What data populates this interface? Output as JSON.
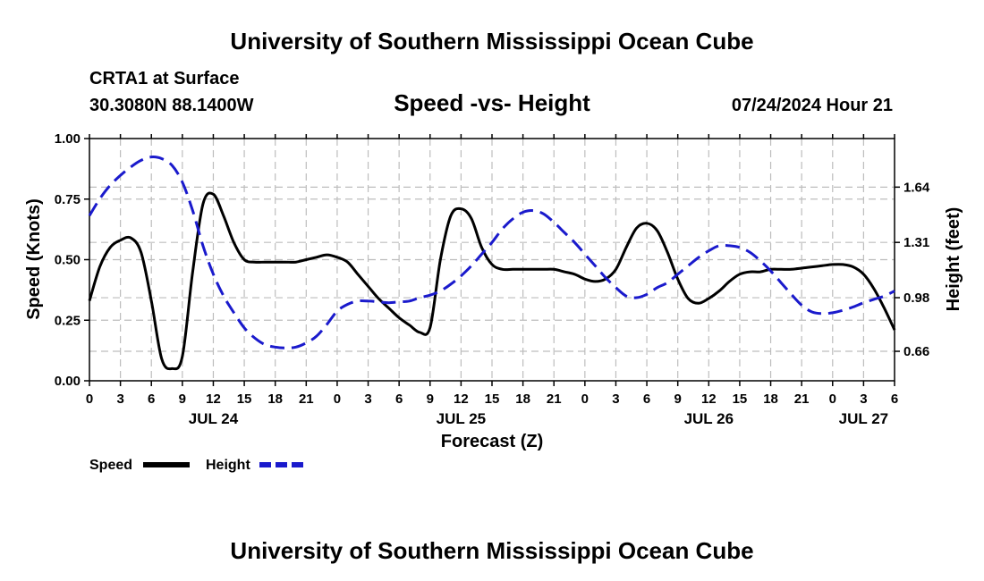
{
  "header": {
    "title": "University of Southern Mississippi Ocean Cube",
    "station": "CRTA1 at Surface",
    "location": "30.3080N  88.1400W",
    "chart_title": "Speed -vs- Height",
    "timestamp": "07/24/2024 Hour 21",
    "footer_title": "University of Southern Mississippi Ocean Cube"
  },
  "legend": {
    "speed_label": "Speed",
    "height_label": "Height"
  },
  "colors": {
    "speed": "#000000",
    "height": "#1a1acc",
    "grid": "#bdbdbd"
  },
  "chart_data": {
    "type": "line",
    "title": "Speed -vs- Height",
    "xlabel": "Forecast (Z)",
    "ylabel": "Speed (Knots)",
    "y2label": "Height (feet)",
    "x_range_hours": [
      0,
      78
    ],
    "x_ticks": [
      "0",
      "3",
      "6",
      "9",
      "12",
      "15",
      "18",
      "21",
      "0",
      "3",
      "6",
      "9",
      "12",
      "15",
      "18",
      "21",
      "0",
      "3",
      "6",
      "9",
      "12",
      "15",
      "18",
      "21",
      "0",
      "3",
      "6"
    ],
    "date_labels": [
      {
        "label": "JUL 24",
        "hour": 12
      },
      {
        "label": "JUL 25",
        "hour": 36
      },
      {
        "label": "JUL 26",
        "hour": 60
      },
      {
        "label": "JUL 27",
        "hour": 75
      }
    ],
    "ylim": [
      0,
      1.0
    ],
    "y_ticks": [
      "0.00",
      "0.25",
      "0.50",
      "0.75",
      "1.00"
    ],
    "y2lim": [
      0.484,
      1.93
    ],
    "y2_ticks": [
      "0.66",
      "0.98",
      "1.31",
      "1.64"
    ],
    "series": [
      {
        "name": "Speed",
        "axis": "left",
        "style": "solid",
        "x": [
          0,
          1,
          2,
          3,
          4,
          5,
          6,
          7,
          8,
          9,
          10,
          11,
          12,
          13,
          14,
          15,
          16,
          17,
          18,
          19,
          20,
          21,
          22,
          23,
          24,
          25,
          26,
          27,
          28,
          29,
          30,
          31,
          32,
          33,
          34,
          35,
          36,
          37,
          38,
          39,
          40,
          41,
          42,
          43,
          44,
          45,
          46,
          47,
          48,
          49,
          50,
          51,
          52,
          53,
          54,
          55,
          56,
          57,
          58,
          59,
          60,
          61,
          62,
          63,
          64,
          65,
          66,
          67,
          68,
          69,
          70,
          71,
          72,
          73,
          74,
          75,
          76,
          77,
          78
        ],
        "values": [
          0.33,
          0.47,
          0.55,
          0.58,
          0.59,
          0.53,
          0.33,
          0.09,
          0.05,
          0.1,
          0.45,
          0.73,
          0.77,
          0.68,
          0.57,
          0.5,
          0.49,
          0.49,
          0.49,
          0.49,
          0.49,
          0.5,
          0.51,
          0.52,
          0.51,
          0.49,
          0.44,
          0.39,
          0.34,
          0.3,
          0.26,
          0.23,
          0.2,
          0.22,
          0.5,
          0.68,
          0.71,
          0.67,
          0.55,
          0.48,
          0.46,
          0.46,
          0.46,
          0.46,
          0.46,
          0.46,
          0.45,
          0.44,
          0.42,
          0.41,
          0.42,
          0.46,
          0.55,
          0.63,
          0.65,
          0.62,
          0.53,
          0.42,
          0.34,
          0.32,
          0.34,
          0.37,
          0.41,
          0.44,
          0.45,
          0.45,
          0.46,
          0.46,
          0.46,
          0.465,
          0.47,
          0.475,
          0.48,
          0.48,
          0.47,
          0.44,
          0.38,
          0.3,
          0.21
        ]
      },
      {
        "name": "Height",
        "axis": "right",
        "style": "dashed",
        "x": [
          0,
          1,
          2,
          3,
          4,
          5,
          6,
          7,
          8,
          9,
          10,
          11,
          12,
          13,
          14,
          15,
          16,
          17,
          18,
          19,
          20,
          21,
          22,
          23,
          24,
          25,
          26,
          27,
          28,
          29,
          30,
          31,
          32,
          33,
          34,
          35,
          36,
          37,
          38,
          39,
          40,
          41,
          42,
          43,
          44,
          45,
          46,
          47,
          48,
          49,
          50,
          51,
          52,
          53,
          54,
          55,
          56,
          57,
          58,
          59,
          60,
          61,
          62,
          63,
          64,
          65,
          66,
          67,
          68,
          69,
          70,
          71,
          72,
          73,
          74,
          75,
          76,
          77,
          78
        ],
        "values": [
          1.47,
          1.57,
          1.65,
          1.71,
          1.76,
          1.8,
          1.82,
          1.81,
          1.77,
          1.67,
          1.5,
          1.29,
          1.12,
          0.99,
          0.89,
          0.8,
          0.74,
          0.7,
          0.685,
          0.68,
          0.685,
          0.71,
          0.75,
          0.82,
          0.9,
          0.94,
          0.96,
          0.96,
          0.955,
          0.95,
          0.955,
          0.96,
          0.98,
          0.995,
          1.02,
          1.06,
          1.11,
          1.17,
          1.24,
          1.31,
          1.39,
          1.45,
          1.49,
          1.5,
          1.48,
          1.43,
          1.37,
          1.31,
          1.24,
          1.17,
          1.1,
          1.04,
          0.99,
          0.98,
          1.0,
          1.04,
          1.07,
          1.12,
          1.17,
          1.22,
          1.26,
          1.29,
          1.29,
          1.28,
          1.25,
          1.2,
          1.14,
          1.07,
          1.0,
          0.935,
          0.895,
          0.885,
          0.89,
          0.905,
          0.925,
          0.95,
          0.97,
          0.99,
          1.02
        ]
      }
    ]
  }
}
